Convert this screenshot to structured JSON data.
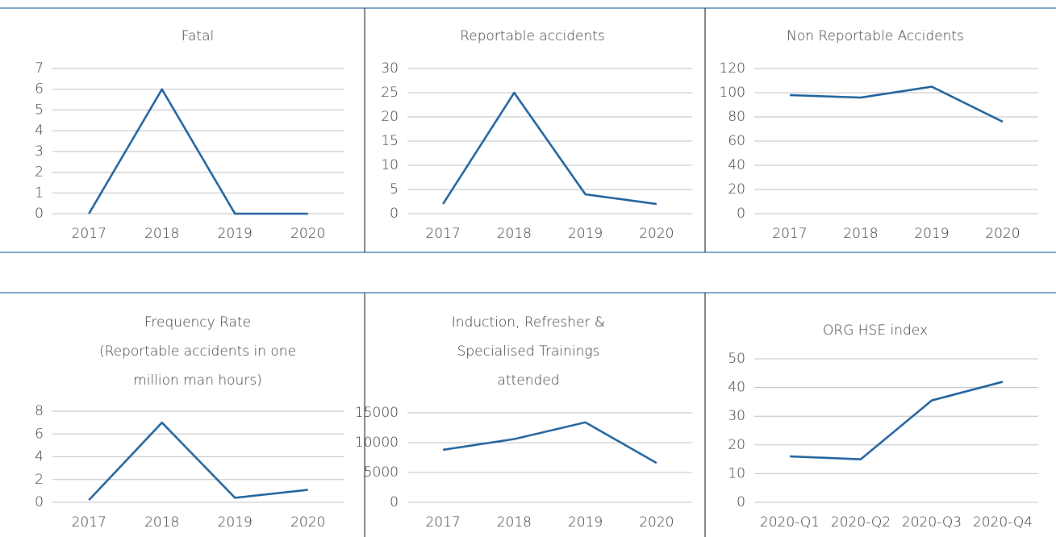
{
  "chart_data": [
    {
      "type": "line",
      "title": [
        "Fatal"
      ],
      "categories": [
        "2017",
        "2018",
        "2019",
        "2020"
      ],
      "series": [
        {
          "name": null,
          "color": "#1a5e9a",
          "values": [
            0,
            6,
            0,
            0
          ]
        }
      ],
      "ylim": [
        0,
        7
      ],
      "yticks": [
        0,
        1,
        2,
        3,
        4,
        5,
        6,
        7
      ],
      "grid": true
    },
    {
      "type": "line",
      "title": [
        "Reportable accidents"
      ],
      "categories": [
        "2017",
        "2018",
        "2019",
        "2020"
      ],
      "series": [
        {
          "name": null,
          "color": "#1a5e9a",
          "values": [
            2,
            25,
            4,
            2
          ]
        }
      ],
      "ylim": [
        0,
        30
      ],
      "yticks": [
        0,
        5,
        10,
        15,
        20,
        25,
        30
      ],
      "grid": true
    },
    {
      "type": "line",
      "title": [
        "Non Reportable Accidents"
      ],
      "categories": [
        "2017",
        "2018",
        "2019",
        "2020"
      ],
      "series": [
        {
          "name": null,
          "color": "#1a5e9a",
          "values": [
            98,
            96,
            105,
            76
          ]
        }
      ],
      "ylim": [
        0,
        120
      ],
      "yticks": [
        0,
        20,
        40,
        60,
        80,
        100,
        120
      ],
      "grid": true
    },
    {
      "type": "line",
      "title": [
        "Frequency Rate",
        "(Reportable accidents in one",
        "million man hours)"
      ],
      "categories": [
        "2017",
        "2018",
        "2019",
        "2020"
      ],
      "series": [
        {
          "name": null,
          "color": "#1a5e9a",
          "values": [
            0.2,
            7,
            0.4,
            1.1
          ]
        }
      ],
      "ylim": [
        0,
        8
      ],
      "yticks": [
        0,
        2,
        4,
        6,
        8
      ],
      "grid": true
    },
    {
      "type": "line",
      "title": [
        "Induction, Refresher &",
        "Specialised Trainings",
        "attended"
      ],
      "categories": [
        "2017",
        "2018",
        "2019",
        "2020"
      ],
      "series": [
        {
          "name": null,
          "color": "#1a5e9a",
          "values": [
            8800,
            10600,
            13400,
            6600
          ]
        }
      ],
      "ylim": [
        0,
        15000
      ],
      "yticks": [
        0,
        5000,
        10000,
        15000
      ],
      "grid": true
    },
    {
      "type": "line",
      "title": [
        "ORG HSE index"
      ],
      "categories": [
        "2020-Q1",
        "2020-Q2",
        "2020-Q3",
        "2020-Q4"
      ],
      "series": [
        {
          "name": null,
          "color": "#1a5e9a",
          "values": [
            16,
            15,
            35.5,
            42
          ]
        }
      ],
      "ylim": [
        0,
        50
      ],
      "yticks": [
        0,
        10,
        20,
        30,
        40,
        50
      ],
      "grid": true
    }
  ]
}
